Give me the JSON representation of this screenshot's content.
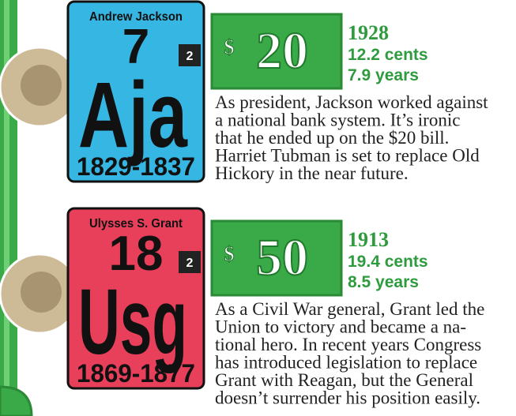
{
  "entries": [
    {
      "name": "Andrew Jackson",
      "number": 7,
      "symbol": "Aja",
      "years": "1829-1837",
      "badge": 2,
      "card_color": "#36b7e3",
      "currency_symbol": "$",
      "denomination": 20,
      "year": 1928,
      "cost": "12.2 cents",
      "lifespan": "7.9 years",
      "description": [
        "As president, Jackson worked against",
        "a national bank system. It’s ironic",
        "that he ended up on the $20 bill.",
        "Harriet Tubman is set to replace Old",
        "Hickory in the near future."
      ]
    },
    {
      "name": "Ulysses S. Grant",
      "number": 18,
      "symbol": "Usg",
      "years": "1869-1877",
      "badge": 2,
      "card_color": "#e8405a",
      "currency_symbol": "$",
      "denomination": 50,
      "year": 1913,
      "cost": "19.4 cents",
      "lifespan": "8.5 years",
      "description": [
        "As a Civil War general, Grant led the",
        "Union to victory and became a na-",
        "tional hero. In recent years Congress",
        "has introduced legislation to replace",
        "Grant with Reagan, but the General",
        "doesn’t surrender his position easily."
      ]
    }
  ]
}
